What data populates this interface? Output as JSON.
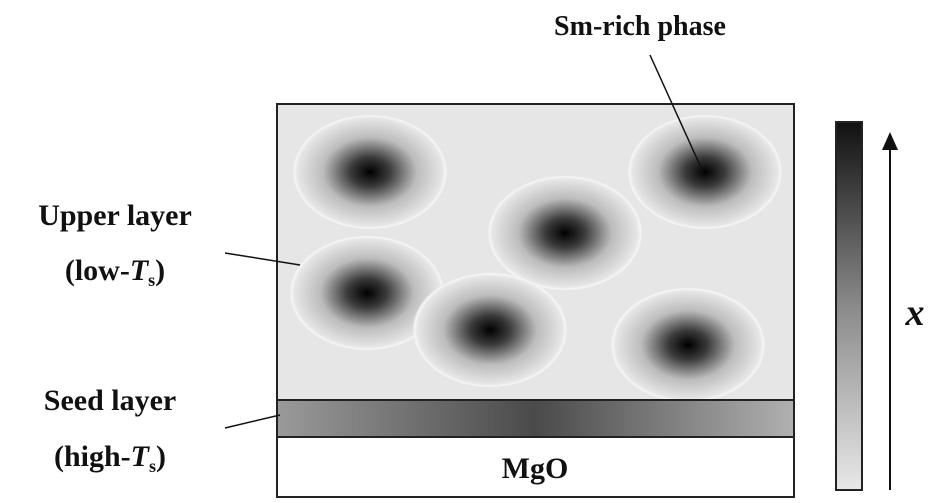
{
  "labels": {
    "sm_rich": "Sm-rich phase",
    "upper_layer": {
      "line1": "Upper layer",
      "open": "(low-",
      "var": "T",
      "sub": "s",
      "close": ")"
    },
    "seed_layer": {
      "line1": "Seed layer",
      "open": "(high-",
      "var": "T",
      "sub": "s",
      "close": ")"
    },
    "substrate": "MgO",
    "axis": "x"
  }
}
